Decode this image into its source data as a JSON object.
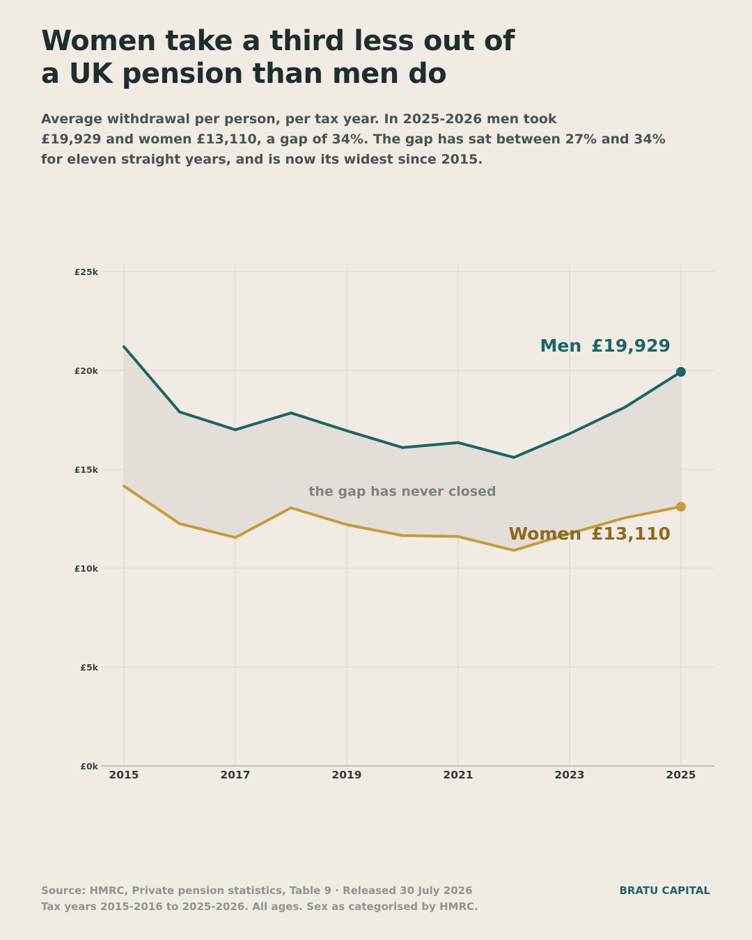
{
  "title": {
    "line1": "Women take a third less out of",
    "line2": "a UK pension than men do"
  },
  "subtitle": {
    "line1": "Average withdrawal per person, per tax year. In 2025-2026 men took",
    "line2": "£19,929 and women £13,110, a gap of 34%. The gap has sat between 27% and 34%",
    "line3": "for eleven straight years, and is now its widest since 2015."
  },
  "footer": {
    "source": "Source: HMRC, Private pension statistics, Table 9   ·   Released 30 July 2026",
    "note": "Tax years 2015-2016 to 2025-2026. All ages. Sex as categorised by HMRC.",
    "brand": "BRATU CAPITAL"
  },
  "colors": {
    "men": "#1e6565",
    "women": "#c79a3e",
    "women_label": "#8c6a1e",
    "gap_fill": "#e0ddd6",
    "grid": "#dcd8cc",
    "background": "#f0ece4"
  },
  "chart_data": {
    "type": "line",
    "x": [
      2015,
      2016,
      2017,
      2018,
      2019,
      2020,
      2021,
      2022,
      2023,
      2024,
      2025
    ],
    "x_ticks": [
      2015,
      2017,
      2019,
      2021,
      2023,
      2025
    ],
    "ylim": [
      0,
      25000
    ],
    "y_ticks": [
      0,
      5000,
      10000,
      15000,
      20000,
      25000
    ],
    "y_tick_labels": [
      "£0k",
      "£5k",
      "£10k",
      "£15k",
      "£20k",
      "£25k"
    ],
    "grid": true,
    "series": [
      {
        "name": "Men",
        "end_label": "£19,929",
        "values": [
          21200,
          17900,
          17000,
          17850,
          16950,
          16100,
          16350,
          15600,
          16800,
          18150,
          19929
        ]
      },
      {
        "name": "Women",
        "end_label": "£13,110",
        "values": [
          14150,
          12250,
          11550,
          13050,
          12200,
          11650,
          11600,
          10900,
          11750,
          12550,
          13110
        ]
      }
    ],
    "annotation": "the gap has never closed"
  }
}
